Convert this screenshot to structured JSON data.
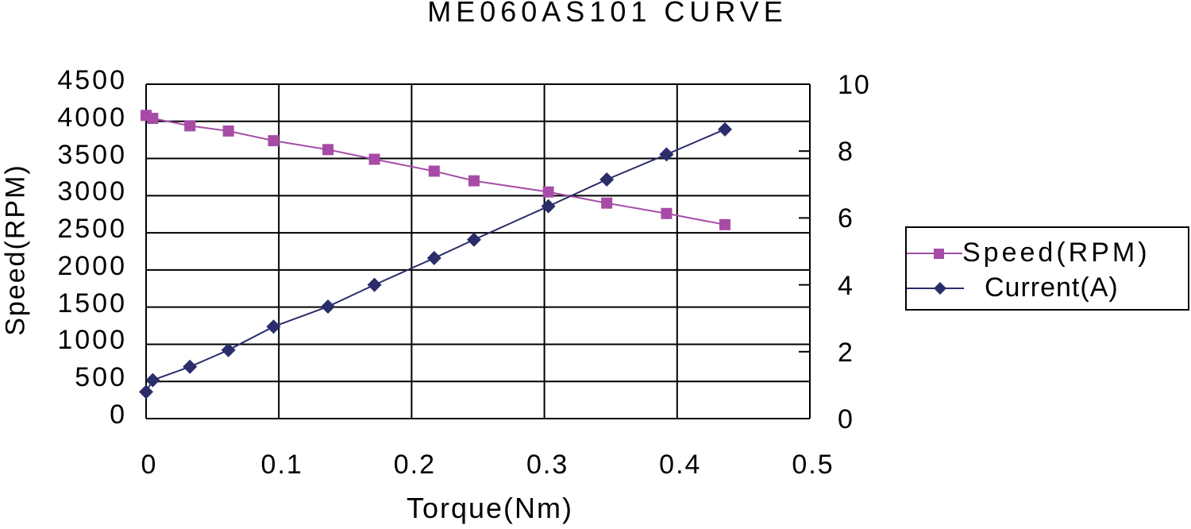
{
  "chart_data": {
    "type": "line",
    "title": "ME060AS101 CURVE",
    "xlabel": "Torque(Nm)",
    "ylabel": "Speed(RPM)",
    "y2label": "",
    "xlim": [
      0,
      0.5
    ],
    "ylim": [
      0,
      4500
    ],
    "y2lim": [
      0,
      10
    ],
    "x_ticks": [
      "0",
      "0.1",
      "0.2",
      "0.3",
      "0.4",
      "0.5"
    ],
    "y_ticks": [
      "0",
      "500",
      "1000",
      "1500",
      "2000",
      "2500",
      "3000",
      "3500",
      "4000",
      "4500"
    ],
    "y2_ticks": [
      "0",
      "2",
      "4",
      "6",
      "8",
      "10"
    ],
    "grid": true,
    "legend_position": "right",
    "x": [
      0,
      0.005,
      0.033,
      0.062,
      0.096,
      0.137,
      0.172,
      0.217,
      0.247,
      0.303,
      0.347,
      0.392,
      0.436
    ],
    "series": [
      {
        "name": "Speed(RPM)",
        "axis": "left",
        "color": "#a64ca6",
        "marker": "square",
        "values": [
          4080,
          4040,
          3940,
          3870,
          3740,
          3620,
          3490,
          3330,
          3200,
          3050,
          2900,
          2760,
          2610
        ]
      },
      {
        "name": "Current(A)",
        "axis": "right",
        "color": "#2b2d6b",
        "marker": "diamond",
        "values": [
          0.8,
          1.15,
          1.55,
          2.05,
          2.75,
          3.35,
          4.0,
          4.8,
          5.35,
          6.35,
          7.15,
          7.9,
          8.65
        ]
      }
    ]
  },
  "legend": {
    "speed_label": "Speed(RPM)",
    "current_label": "Current(A)"
  }
}
